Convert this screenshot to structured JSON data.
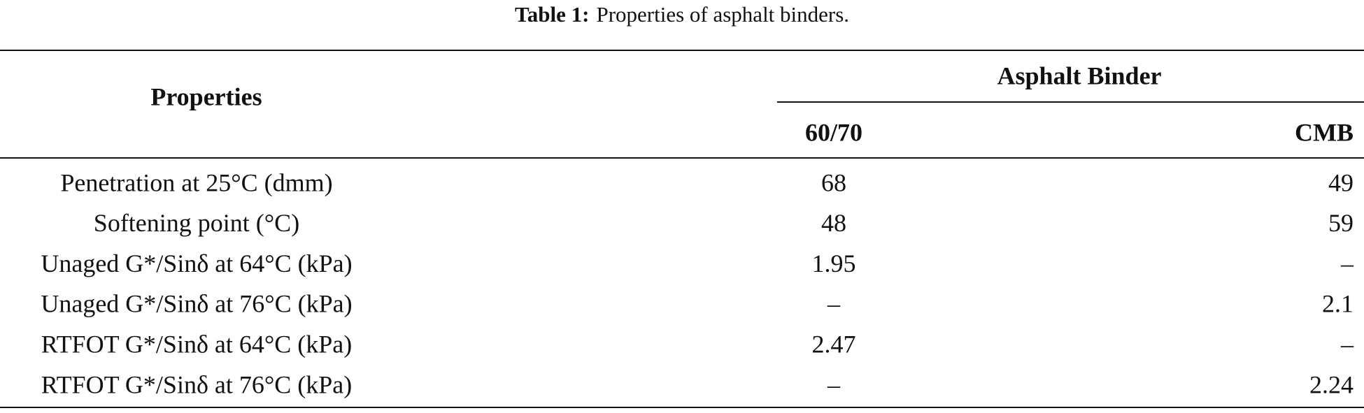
{
  "caption": {
    "label": "Table 1:",
    "text": "Properties of asphalt binders."
  },
  "table": {
    "header": {
      "properties": "Properties",
      "group": "Asphalt Binder",
      "columns": [
        "60/70",
        "CMB"
      ]
    },
    "rows": [
      [
        "Penetration at 25°C (dmm)",
        "68",
        "49"
      ],
      [
        "Softening point (°C)",
        "48",
        "59"
      ],
      [
        "Unaged G*/Sinδ at 64°C (kPa)",
        "1.95",
        "–"
      ],
      [
        "Unaged G*/Sinδ at 76°C (kPa)",
        "–",
        "2.1"
      ],
      [
        "RTFOT G*/Sinδ at 64°C (kPa)",
        "2.47",
        "–"
      ],
      [
        "RTFOT G*/Sinδ at 76°C (kPa)",
        "–",
        "2.24"
      ]
    ]
  }
}
